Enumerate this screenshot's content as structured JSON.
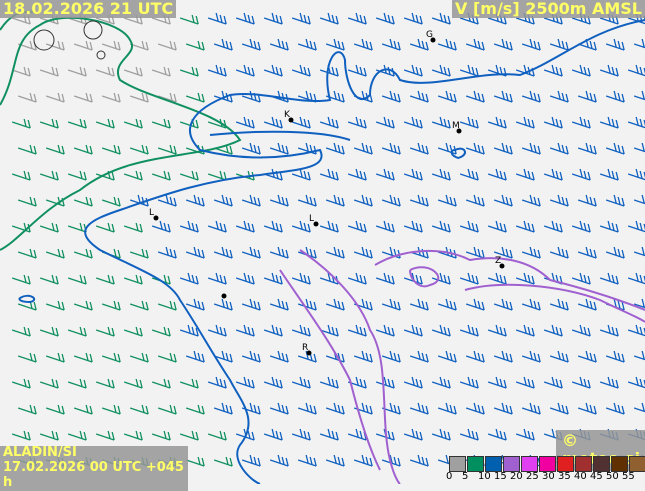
{
  "header": {
    "valid_time": "18.02.2026 21 UTC",
    "parameter": "V [m/s] 2500m AMSL"
  },
  "footer": {
    "model": "ALADIN/SI",
    "run": "17.02.2026 00 UTC +045 h",
    "copyright": "© meteo.si"
  },
  "legend": {
    "colors": [
      "#a0a0a0",
      "#009060",
      "#0060b0",
      "#a060d0",
      "#e040f0",
      "#f000a0",
      "#e02020",
      "#a03030",
      "#503030",
      "#603000",
      "#906030",
      "#b09060"
    ],
    "ticks": [
      "0",
      "5",
      "10",
      "15",
      "20",
      "25",
      "30",
      "35",
      "40",
      "45",
      "50",
      "55"
    ]
  },
  "contour_colors": {
    "5": "#109060",
    "10": "#1060c0",
    "15": "#a060d0"
  },
  "cities": [
    {
      "label": "G"
    },
    {
      "label": "K"
    },
    {
      "label": "M"
    },
    {
      "label": "L"
    },
    {
      "label": "L"
    },
    {
      "label": "Z"
    },
    {
      "label": ""
    },
    {
      "label": "R"
    }
  ]
}
